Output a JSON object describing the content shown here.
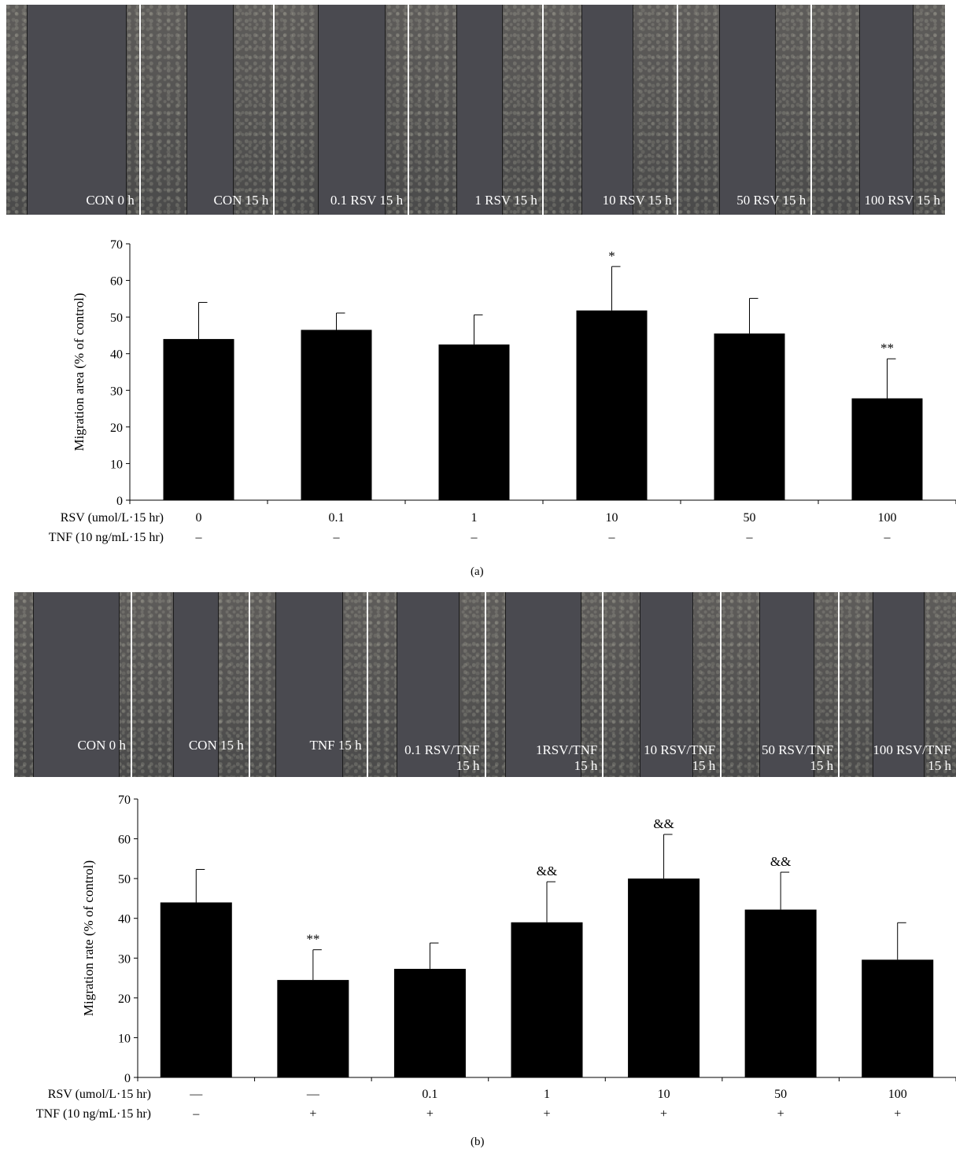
{
  "panel_a": {
    "image_labels": [
      "CON 0 h",
      "CON 15 h",
      "0.1 RSV 15 h",
      "1 RSV 15 h",
      "10 RSV 15 h",
      "50 RSV 15 h",
      "100 RSV 15 h"
    ],
    "caption": "(a)"
  },
  "panel_b": {
    "image_labels": [
      "CON 0 h",
      "CON 15 h",
      "TNF 15 h",
      "0.1 RSV/TNF\n15 h",
      "1RSV/TNF\n15 h",
      "10 RSV/TNF\n15 h",
      "50 RSV/TNF\n15 h",
      "100 RSV/TNF\n15 h"
    ],
    "caption": "(b)"
  },
  "chart_data": [
    {
      "type": "bar",
      "ylabel": "Migration area (% of control)",
      "ylim": [
        0,
        70
      ],
      "yticks": [
        0,
        10,
        20,
        30,
        40,
        50,
        60,
        70
      ],
      "row_labels": [
        "RSV (umol/L·15 hr)",
        "TNF (10 ng/mL·15 hr)"
      ],
      "categories": [
        "0",
        "0.1",
        "1",
        "10",
        "50",
        "100"
      ],
      "tnf": [
        "–",
        "–",
        "–",
        "–",
        "–",
        "–"
      ],
      "values": [
        44,
        46.5,
        42.5,
        51.8,
        45.5,
        27.8
      ],
      "errors": [
        10,
        4.6,
        8.1,
        12,
        9.6,
        10.8
      ],
      "annotations": [
        "",
        "",
        "",
        "*",
        "",
        "**"
      ],
      "bar_color": "#000000"
    },
    {
      "type": "bar",
      "ylabel": "Migration rate (% of control)",
      "ylim": [
        0,
        70
      ],
      "yticks": [
        0,
        10,
        20,
        30,
        40,
        50,
        60,
        70
      ],
      "row_labels": [
        "RSV (umol/L·15 hr)",
        "TNF (10 ng/mL·15 hr)"
      ],
      "categories": [
        "—",
        "—",
        "0.1",
        "1",
        "10",
        "50",
        "100"
      ],
      "tnf": [
        "–",
        "+",
        "+",
        "+",
        "+",
        "+",
        "+"
      ],
      "values": [
        44,
        24.5,
        27.3,
        39,
        50,
        42.2,
        29.6
      ],
      "errors": [
        8.3,
        7.6,
        6.5,
        10.2,
        11.1,
        9.4,
        9.3
      ],
      "annotations": [
        "",
        "**",
        "",
        "&&",
        "&&",
        "&&",
        ""
      ],
      "bar_color": "#000000"
    }
  ]
}
